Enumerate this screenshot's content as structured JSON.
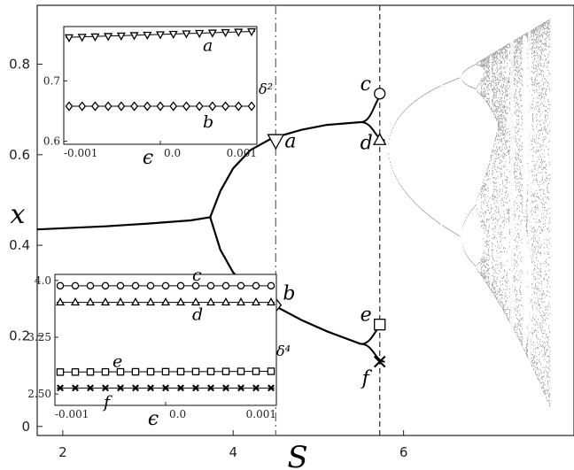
{
  "chart_data": {
    "type": "scatter",
    "description_note": "",
    "x_label": "S",
    "y_label": "x",
    "x_ticks": [
      "2",
      "4",
      "6"
    ],
    "y_ticks": [
      "0",
      "0.2",
      "0.4",
      "0.6",
      "0.8"
    ],
    "xlim": [
      1.7,
      8.0
    ],
    "ylim": [
      -0.02,
      0.93
    ],
    "vlines": [
      {
        "x": 4.5,
        "style": "dash-dot"
      },
      {
        "x": 5.72,
        "style": "dashed"
      }
    ],
    "branch": [
      [
        1.7,
        0.435
      ],
      [
        2.5,
        0.442
      ],
      [
        3.0,
        0.448
      ],
      [
        3.5,
        0.455
      ],
      [
        3.73,
        0.462
      ]
    ],
    "upper_branch": [
      [
        3.73,
        0.462
      ],
      [
        3.85,
        0.52
      ],
      [
        4.0,
        0.57
      ],
      [
        4.2,
        0.61
      ],
      [
        4.45,
        0.636
      ],
      [
        4.8,
        0.655
      ],
      [
        5.1,
        0.666
      ],
      [
        5.5,
        0.672
      ]
    ],
    "lower_branch": [
      [
        3.73,
        0.462
      ],
      [
        3.85,
        0.39
      ],
      [
        4.0,
        0.34
      ],
      [
        4.2,
        0.3
      ],
      [
        4.45,
        0.27
      ],
      [
        4.8,
        0.235
      ],
      [
        5.1,
        0.21
      ],
      [
        5.5,
        0.182
      ]
    ],
    "points": [
      {
        "label": "a",
        "marker": "triangle-down",
        "x": 4.5,
        "y": 0.632
      },
      {
        "label": "b",
        "marker": "diamond",
        "x": 4.5,
        "y": 0.268
      },
      {
        "label": "c",
        "marker": "circle",
        "x": 5.72,
        "y": 0.735
      },
      {
        "label": "d",
        "marker": "triangle-up",
        "x": 5.72,
        "y": 0.632
      },
      {
        "label": "e",
        "marker": "square",
        "x": 5.72,
        "y": 0.225
      },
      {
        "label": "f",
        "marker": "x",
        "x": 5.72,
        "y": 0.143
      }
    ],
    "insets": [
      {
        "x_label": "ϵ",
        "y_label": "δ²",
        "x_ticks": [
          "-0.001",
          "0.0",
          "0.001"
        ],
        "y_ticks": [
          "0.6",
          "0.7"
        ],
        "xlim": [
          -0.001,
          0.001
        ],
        "ylim": [
          0.595,
          0.79
        ],
        "series": [
          {
            "name": "a",
            "marker": "triangle-down",
            "y_start": 0.772,
            "y_end": 0.782
          },
          {
            "name": "b",
            "marker": "diamond",
            "y_start": 0.658,
            "y_end": 0.658
          }
        ]
      },
      {
        "x_label": "ϵ",
        "y_label": "δ⁴",
        "x_ticks": [
          "-0.001",
          "0.0",
          "0.001"
        ],
        "y_ticks": [
          "2.50",
          "3.25",
          "4.0"
        ],
        "xlim": [
          -0.001,
          0.001
        ],
        "ylim": [
          2.35,
          4.08
        ],
        "series": [
          {
            "name": "c",
            "marker": "circle",
            "y_start": 3.93,
            "y_end": 3.93
          },
          {
            "name": "d",
            "marker": "triangle-up",
            "y_start": 3.71,
            "y_end": 3.71
          },
          {
            "name": "e",
            "marker": "square",
            "y_start": 2.79,
            "y_end": 2.8
          },
          {
            "name": "f",
            "marker": "x",
            "y_start": 2.58,
            "y_end": 2.58
          }
        ]
      }
    ]
  }
}
